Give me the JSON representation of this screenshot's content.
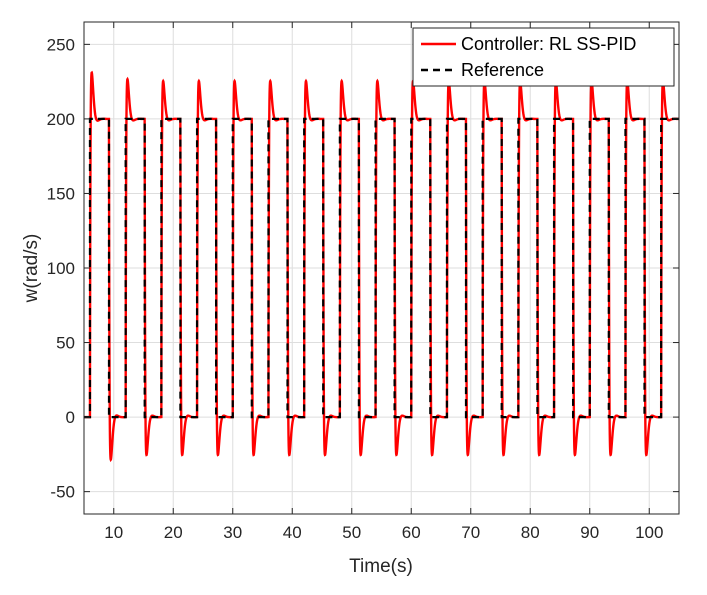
{
  "chart_data": {
    "type": "line",
    "title": "",
    "xlabel": "Time(s)",
    "ylabel": "w(rad/s)",
    "xlim": [
      5,
      105
    ],
    "ylim": [
      -65,
      265
    ],
    "xticks": [
      10,
      20,
      30,
      40,
      50,
      60,
      70,
      80,
      90,
      100
    ],
    "yticks": [
      -50,
      0,
      50,
      100,
      150,
      200,
      250
    ],
    "grid": true,
    "legend_position": "top-right",
    "colors": {
      "controller": "#ff0000",
      "reference": "#000000"
    },
    "reference": {
      "low": 0,
      "high": 200,
      "rise_times": [
        6,
        12,
        18,
        24,
        30,
        36,
        42,
        48,
        54,
        60,
        66,
        72,
        78,
        84,
        90,
        96,
        102
      ],
      "fall_times": [
        9.2,
        15.2,
        21.2,
        27.2,
        33.2,
        39.2,
        45.2,
        51.2,
        57.2,
        63.2,
        69.2,
        75.2,
        81.2,
        87.2,
        93.2,
        99.2
      ]
    },
    "controller_response": {
      "overshoot_peaks": [
        252,
        245,
        243,
        243,
        243,
        243,
        243,
        243,
        243,
        243,
        243,
        243,
        243,
        243,
        243,
        243,
        243
      ],
      "undershoot_troughs": [
        -48,
        -43,
        -43,
        -43,
        -43,
        -43,
        -43,
        -43,
        -43,
        -43,
        -43,
        -43,
        -43,
        -43,
        -43,
        -43
      ]
    },
    "series": [
      {
        "name": "Controller: RL SS-PID",
        "style": "solid",
        "color": "#ff0000"
      },
      {
        "name": "Reference",
        "style": "dashed",
        "color": "#000000"
      }
    ]
  }
}
